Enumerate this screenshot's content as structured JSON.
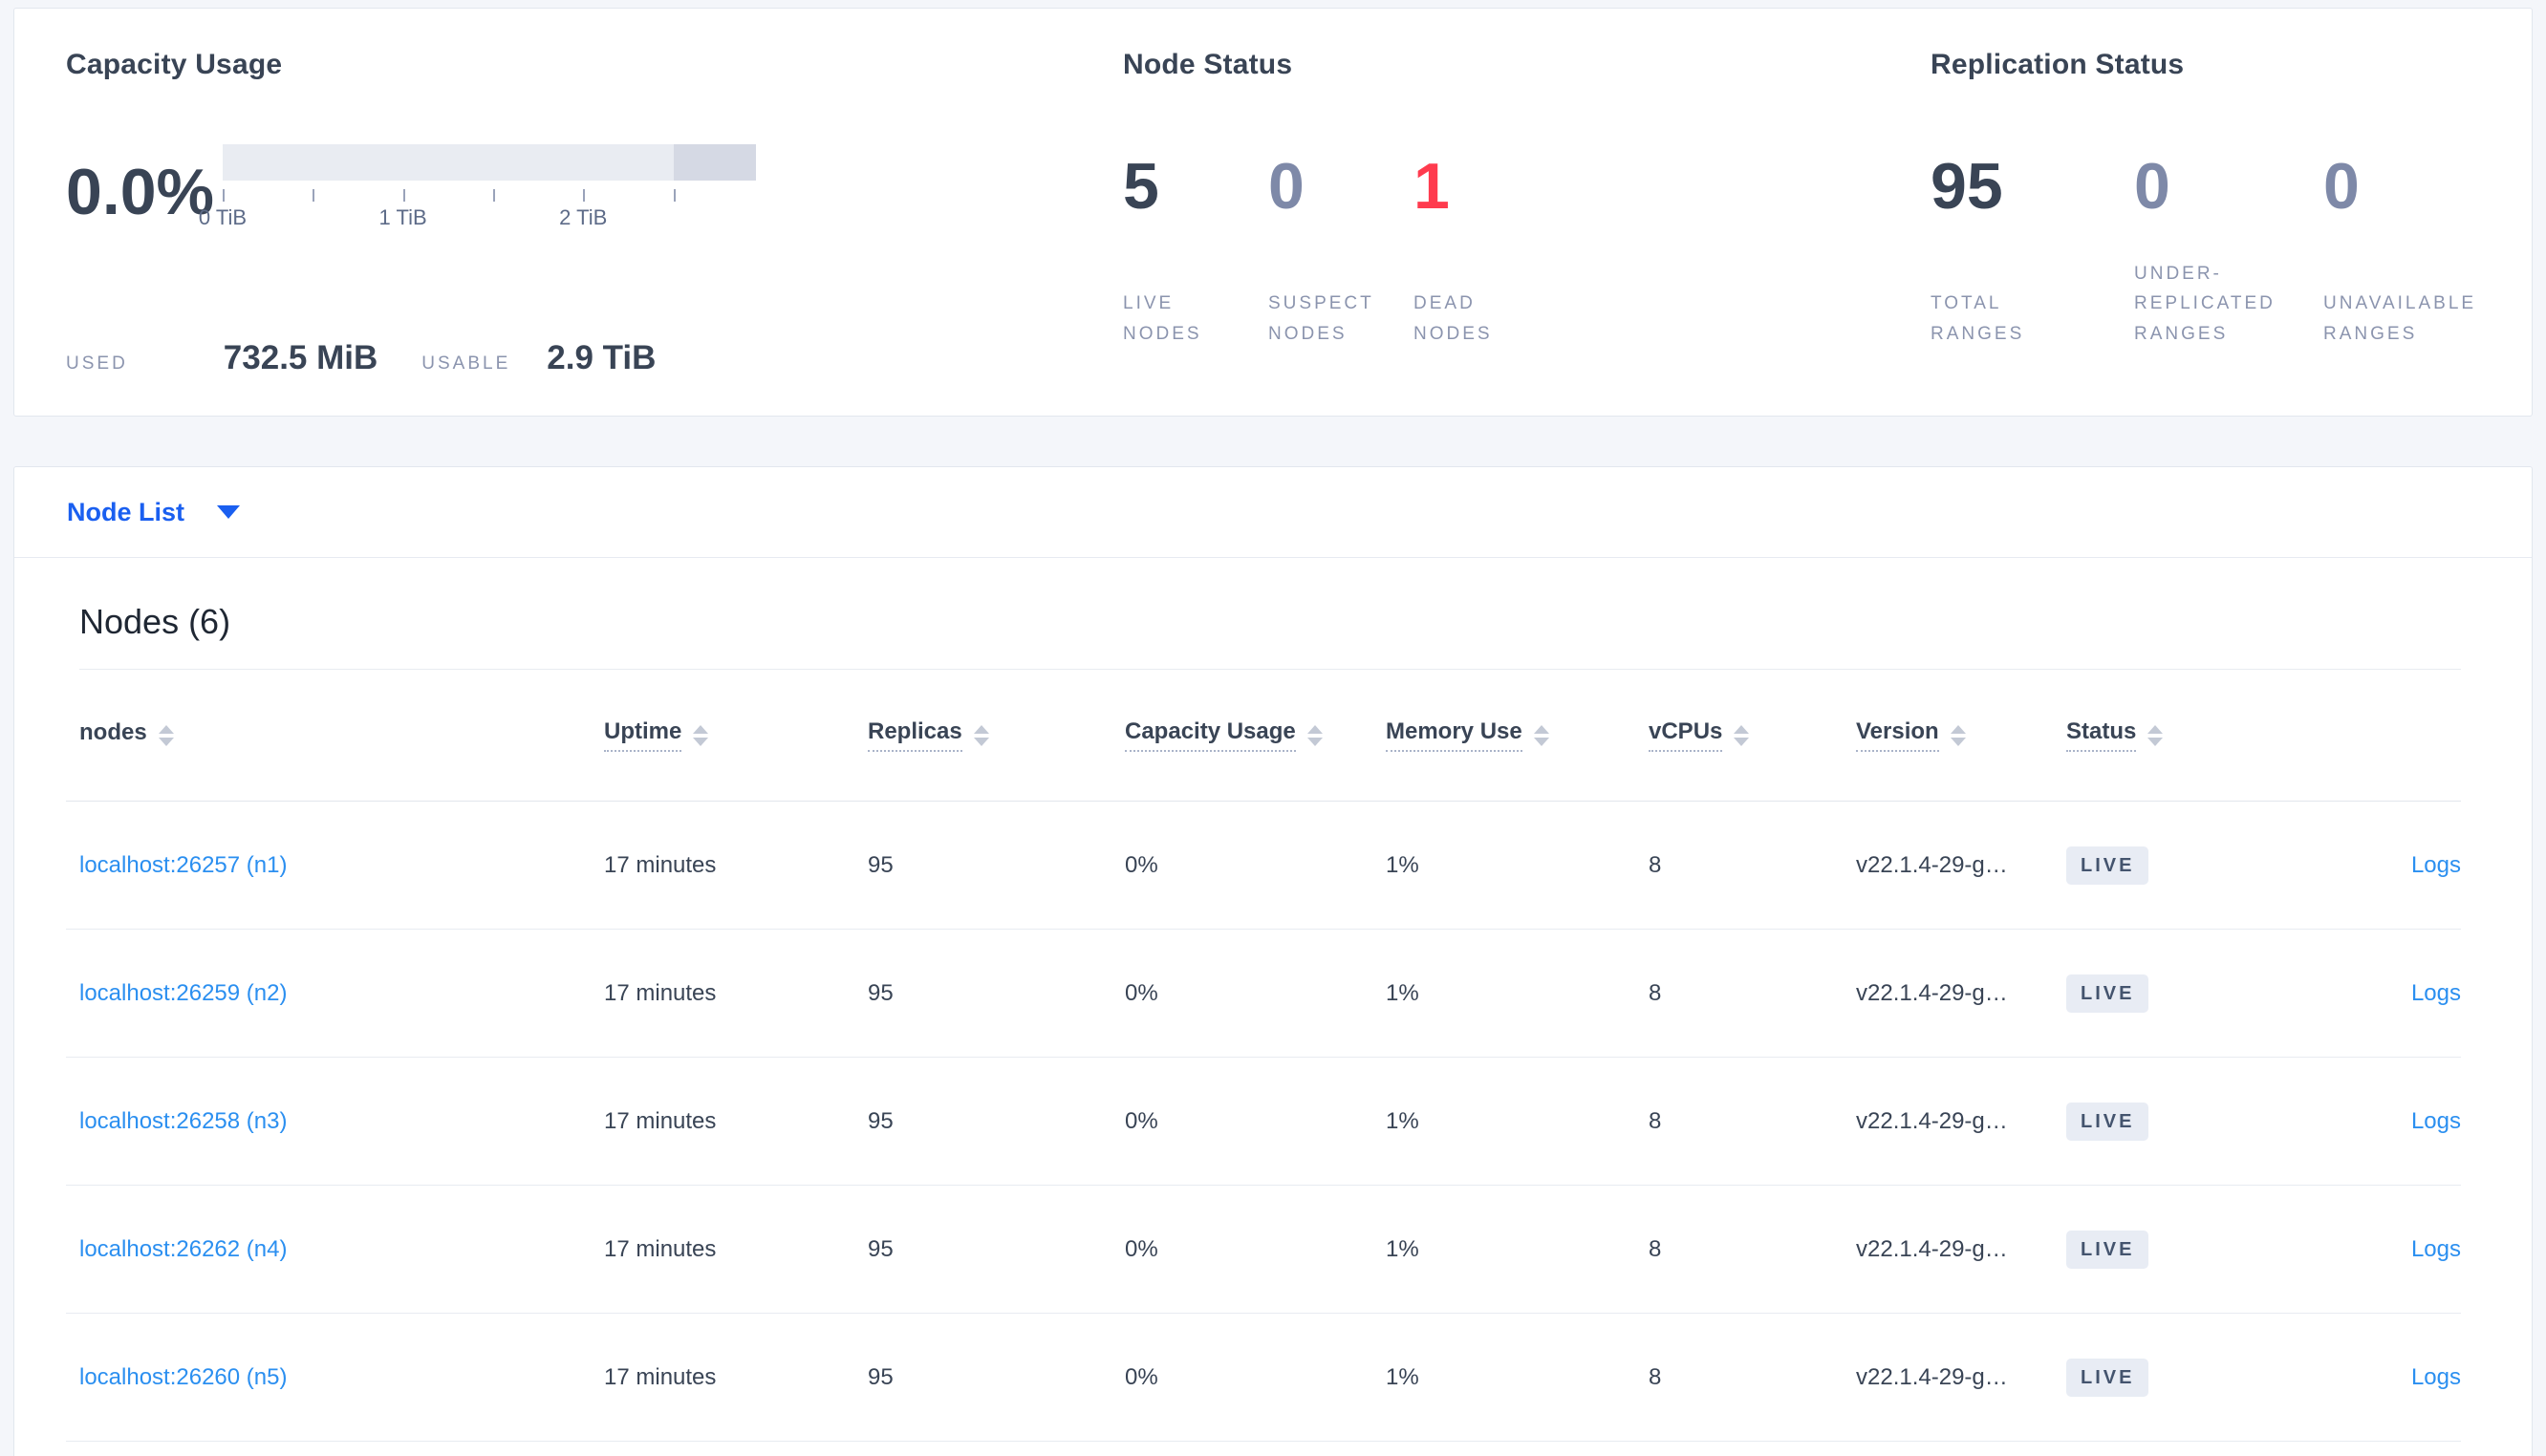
{
  "theme": {
    "page_background": "#f4f6fa",
    "card_background": "#ffffff",
    "accent_blue": "#1a5ff0",
    "link_blue": "#2b8ff0",
    "danger_red": "#ff3b4e",
    "muted_number": "#7e89a8",
    "primary_number": "#394455",
    "gauge_light": "#e9ecf2",
    "gauge_dark": "#d5d9e4"
  },
  "summary": {
    "capacity": {
      "title": "Capacity Usage",
      "percent": "0.0%",
      "used_label": "USED",
      "used_value": "732.5 MiB",
      "usable_label": "USABLE",
      "usable_value": "2.9 TiB",
      "gauge": {
        "usable_percent": 84.5,
        "other_percent": 15.5,
        "tick_labels": [
          "0 TiB",
          "1 TiB",
          "2 TiB"
        ]
      }
    },
    "node_status": {
      "title": "Node Status",
      "stats": [
        {
          "value": "5",
          "label": "LIVE\nNODES",
          "color": "#394455"
        },
        {
          "value": "0",
          "label": "SUSPECT\nNODES",
          "color": "#7e89a8"
        },
        {
          "value": "1",
          "label": "DEAD\nNODES",
          "color": "#ff3b4e"
        }
      ]
    },
    "replication_status": {
      "title": "Replication Status",
      "stats": [
        {
          "value": "95",
          "label": "TOTAL\nRANGES",
          "color": "#394455"
        },
        {
          "value": "0",
          "label": "UNDER-\nREPLICATED\nRANGES",
          "color": "#7e89a8"
        },
        {
          "value": "0",
          "label": "UNAVAILABLE\nRANGES",
          "color": "#7e89a8"
        }
      ]
    }
  },
  "node_list": {
    "selector_label": "Node List",
    "section_title": "Nodes (6)",
    "columns": [
      "nodes",
      "Uptime",
      "Replicas",
      "Capacity Usage",
      "Memory Use",
      "vCPUs",
      "Version",
      "Status"
    ],
    "rows": [
      {
        "node": "localhost:26257 (n1)",
        "uptime": "17 minutes",
        "replicas": "95",
        "capacity_usage": "0%",
        "memory_use": "1%",
        "vcpus": "8",
        "version": "v22.1.4-29-g…",
        "status": "LIVE",
        "logs_label": "Logs"
      },
      {
        "node": "localhost:26259 (n2)",
        "uptime": "17 minutes",
        "replicas": "95",
        "capacity_usage": "0%",
        "memory_use": "1%",
        "vcpus": "8",
        "version": "v22.1.4-29-g…",
        "status": "LIVE",
        "logs_label": "Logs"
      },
      {
        "node": "localhost:26258 (n3)",
        "uptime": "17 minutes",
        "replicas": "95",
        "capacity_usage": "0%",
        "memory_use": "1%",
        "vcpus": "8",
        "version": "v22.1.4-29-g…",
        "status": "LIVE",
        "logs_label": "Logs"
      },
      {
        "node": "localhost:26262 (n4)",
        "uptime": "17 minutes",
        "replicas": "95",
        "capacity_usage": "0%",
        "memory_use": "1%",
        "vcpus": "8",
        "version": "v22.1.4-29-g…",
        "status": "LIVE",
        "logs_label": "Logs"
      },
      {
        "node": "localhost:26260 (n5)",
        "uptime": "17 minutes",
        "replicas": "95",
        "capacity_usage": "0%",
        "memory_use": "1%",
        "vcpus": "8",
        "version": "v22.1.4-29-g…",
        "status": "LIVE",
        "logs_label": "Logs"
      }
    ]
  }
}
